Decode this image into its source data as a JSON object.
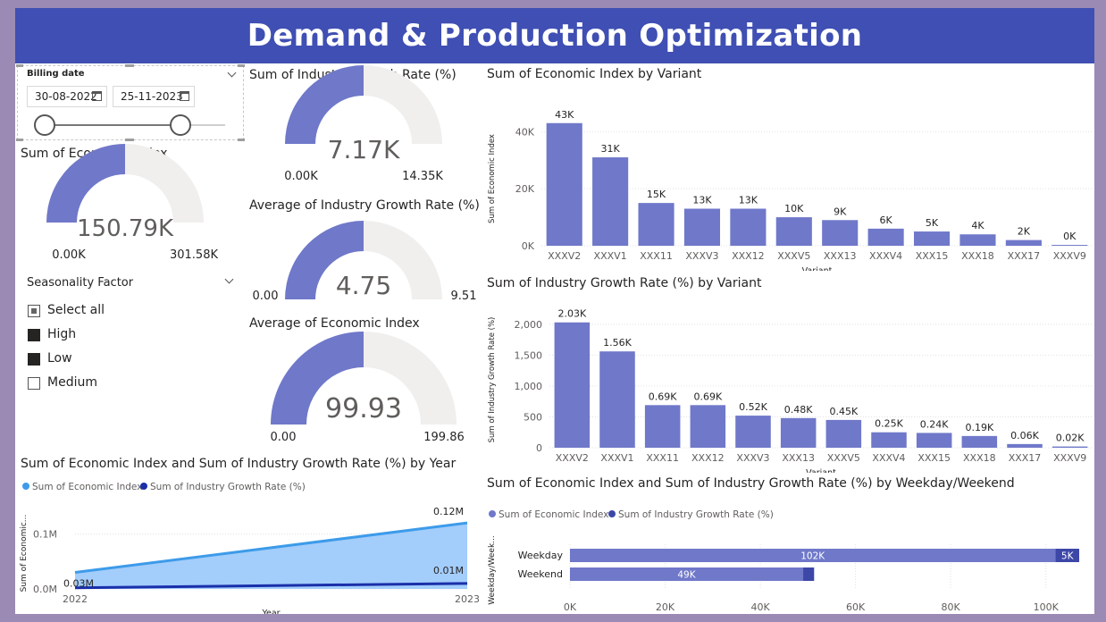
{
  "page": {
    "title": "Demand & Production Optimization"
  },
  "colors": {
    "accent": "#3f4fb3",
    "bar": "#6f78c9",
    "gauge_track": "#f0efee",
    "area_fill": "#a3cdfb",
    "area_line": "#3d9be9",
    "line2": "#1a2faa",
    "bar_dark": "#3d47a8",
    "frame": "#9b8ab3"
  },
  "billing_slicer": {
    "label": "Billing date",
    "start": "30-08-2022",
    "end": "25-11-2023",
    "start_icon": "calendar-icon",
    "end_icon": "calendar-icon"
  },
  "gauges": [
    {
      "title": "Sum of Economic Index",
      "value": "150.79K",
      "min": "0.00K",
      "max": "301.58K",
      "fill": 0.5
    },
    {
      "title": "Sum of Industry Growth Rate (%)",
      "value": "7.17K",
      "min": "0.00K",
      "max": "14.35K",
      "fill": 0.5
    },
    {
      "title": "Average of Industry Growth Rate (%)",
      "value": "4.75",
      "min": "0.00",
      "max": "9.51",
      "fill": 0.5
    },
    {
      "title": "Average of Economic Index",
      "value": "99.93",
      "min": "0.00",
      "max": "199.86",
      "fill": 0.5
    }
  ],
  "seasonality": {
    "title": "Seasonality Factor",
    "options": [
      {
        "label": "Select all",
        "state": "partial"
      },
      {
        "label": "High",
        "state": "checked"
      },
      {
        "label": "Low",
        "state": "checked"
      },
      {
        "label": "Medium",
        "state": "unchecked"
      }
    ]
  },
  "chart_data": [
    {
      "type": "bar",
      "title": "Sum of Economic Index by Variant",
      "xlabel": "Variant",
      "ylabel": "Sum of Economic Index",
      "categories": [
        "XXXV2",
        "XXXV1",
        "XXX11",
        "XXXV3",
        "XXX12",
        "XXXV5",
        "XXX13",
        "XXXV4",
        "XXX15",
        "XXX18",
        "XXX17",
        "XXXV9"
      ],
      "values": [
        43000,
        31000,
        15000,
        13000,
        13000,
        10000,
        9000,
        6000,
        5000,
        4000,
        2000,
        300
      ],
      "data_labels": [
        "43K",
        "31K",
        "15K",
        "13K",
        "13K",
        "10K",
        "9K",
        "6K",
        "5K",
        "4K",
        "2K",
        "0K"
      ],
      "yticks": [
        "0K",
        "20K",
        "40K"
      ],
      "ytick_values": [
        0,
        20000,
        40000
      ],
      "ylim": [
        0,
        47000
      ]
    },
    {
      "type": "bar",
      "title": "Sum of Industry Growth Rate (%) by Variant",
      "xlabel": "Variant",
      "ylabel": "Sum of Industry Growth Rate (%)",
      "categories": [
        "XXXV2",
        "XXXV1",
        "XXX11",
        "XXX12",
        "XXXV3",
        "XXX13",
        "XXXV5",
        "XXXV4",
        "XXX15",
        "XXX18",
        "XXX17",
        "XXXV9"
      ],
      "values": [
        2030,
        1560,
        690,
        690,
        520,
        480,
        450,
        250,
        240,
        190,
        60,
        20
      ],
      "data_labels": [
        "2.03K",
        "1.56K",
        "0.69K",
        "0.69K",
        "0.52K",
        "0.48K",
        "0.45K",
        "0.25K",
        "0.24K",
        "0.19K",
        "0.06K",
        "0.02K"
      ],
      "yticks": [
        "0",
        "500",
        "1,000",
        "1,500",
        "2,000"
      ],
      "ytick_values": [
        0,
        500,
        1000,
        1500,
        2000
      ],
      "ylim": [
        0,
        2200
      ]
    },
    {
      "type": "area",
      "title": "Sum of Economic Index and Sum of Industry Growth Rate (%) by Year",
      "xlabel": "Year",
      "ylabel": "Sum of Economic...",
      "x": [
        "2022",
        "2023"
      ],
      "series": [
        {
          "name": "Sum of Economic Index",
          "values": [
            30000,
            120000
          ],
          "labels": [
            "0.03M",
            "0.12M"
          ]
        },
        {
          "name": "Sum of Industry Growth Rate (%)",
          "values": [
            2000,
            10000
          ],
          "labels": [
            "",
            "0.01M"
          ]
        }
      ],
      "yticks": [
        "0.0M",
        "0.1M"
      ],
      "ytick_values": [
        0,
        100000
      ],
      "ylim": [
        0,
        130000
      ]
    },
    {
      "type": "bar",
      "orientation": "horizontal",
      "stacked": true,
      "title": "Sum of Economic Index and Sum of Industry Growth Rate (%) by Weekday/Weekend",
      "ylabel": "Weekday/Week...",
      "categories": [
        "Weekday",
        "Weekend"
      ],
      "series": [
        {
          "name": "Sum of Economic Index",
          "values": [
            102000,
            49000
          ],
          "labels": [
            "102K",
            "49K"
          ]
        },
        {
          "name": "Sum of Industry Growth Rate (%)",
          "values": [
            5000,
            2300
          ],
          "labels": [
            "5K",
            ""
          ]
        }
      ],
      "xticks": [
        "0K",
        "20K",
        "40K",
        "60K",
        "80K",
        "100K"
      ],
      "xtick_values": [
        0,
        20000,
        40000,
        60000,
        80000,
        100000
      ],
      "xlim": [
        0,
        107000
      ]
    }
  ]
}
